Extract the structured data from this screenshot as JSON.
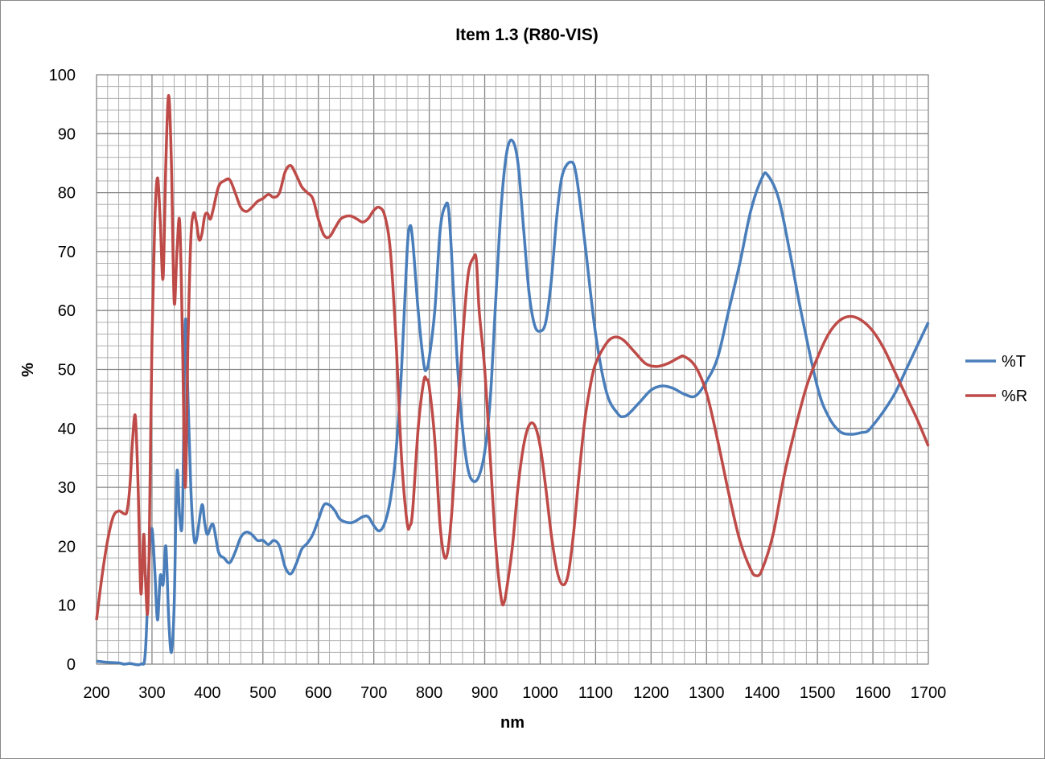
{
  "chart_data": {
    "type": "line",
    "title": "Item 1.3  (R80-VIS)",
    "xlabel": "nm",
    "ylabel": "%",
    "xlim": [
      200,
      1700
    ],
    "ylim": [
      0,
      100
    ],
    "xticks": [
      200,
      300,
      400,
      500,
      600,
      700,
      800,
      900,
      1000,
      1100,
      1200,
      1300,
      1400,
      1500,
      1600,
      1700
    ],
    "yticks": [
      0,
      10,
      20,
      30,
      40,
      50,
      60,
      70,
      80,
      90,
      100
    ],
    "grid": true,
    "minor_grid": {
      "x_step": 20,
      "y_step": 2
    },
    "legend_position": "right",
    "series": [
      {
        "name": "%T",
        "color": "#4a7ebb",
        "x": [
          200,
          220,
          240,
          250,
          260,
          280,
          288,
          295,
          300,
          305,
          310,
          315,
          320,
          325,
          330,
          335,
          340,
          345,
          350,
          355,
          360,
          365,
          370,
          375,
          380,
          390,
          395,
          400,
          410,
          420,
          430,
          440,
          450,
          460,
          470,
          480,
          490,
          500,
          510,
          520,
          530,
          540,
          550,
          560,
          570,
          580,
          590,
          600,
          610,
          620,
          630,
          640,
          660,
          680,
          690,
          700,
          710,
          720,
          730,
          740,
          750,
          760,
          765,
          770,
          780,
          790,
          795,
          800,
          810,
          820,
          830,
          835,
          840,
          850,
          860,
          870,
          880,
          890,
          900,
          910,
          920,
          930,
          940,
          950,
          960,
          970,
          980,
          990,
          1000,
          1010,
          1020,
          1030,
          1040,
          1055,
          1065,
          1080,
          1100,
          1120,
          1140,
          1150,
          1160,
          1180,
          1200,
          1220,
          1240,
          1260,
          1280,
          1300,
          1320,
          1340,
          1360,
          1380,
          1400,
          1410,
          1430,
          1450,
          1470,
          1500,
          1520,
          1540,
          1560,
          1580,
          1590,
          1600,
          1620,
          1640,
          1660,
          1680,
          1700
        ],
        "y": [
          0.5,
          0.3,
          0.2,
          0,
          0.1,
          0,
          2,
          18,
          23,
          16,
          7.5,
          15,
          13.5,
          20,
          8,
          2,
          10,
          32.5,
          25,
          25.5,
          58,
          45,
          30,
          22,
          21,
          27,
          24,
          22,
          23.7,
          19,
          18,
          17.2,
          19,
          21.5,
          22.4,
          22,
          21,
          21,
          20.3,
          21,
          20,
          16.5,
          15.3,
          17,
          19.5,
          20.5,
          22,
          24.5,
          27,
          27,
          26,
          24.5,
          24,
          25,
          25,
          23.5,
          22.6,
          24,
          28,
          36,
          50,
          70,
          74.3,
          72,
          60,
          51,
          50,
          52,
          60,
          74,
          78,
          77,
          70,
          52,
          40,
          33,
          31,
          32,
          36,
          45,
          62,
          78,
          87,
          88.8,
          85,
          74,
          63,
          57.5,
          56.5,
          58,
          65,
          76,
          83,
          85.2,
          83,
          72,
          56,
          46,
          42.5,
          42,
          42.5,
          44.5,
          46.5,
          47.2,
          46.8,
          45.8,
          45.5,
          48,
          52,
          60,
          68,
          77,
          82.5,
          83,
          79,
          70,
          60,
          47,
          42,
          39.5,
          39,
          39.3,
          39.5,
          40.5,
          43,
          46,
          50,
          54,
          58
        ]
      },
      {
        "name": "%R",
        "color": "#be4b48",
        "x": [
          200,
          210,
          220,
          230,
          240,
          250,
          255,
          260,
          265,
          270,
          275,
          280,
          285,
          288,
          292,
          295,
          300,
          305,
          310,
          315,
          320,
          325,
          330,
          335,
          340,
          345,
          350,
          355,
          360,
          365,
          370,
          375,
          380,
          385,
          390,
          395,
          400,
          405,
          410,
          420,
          430,
          440,
          450,
          460,
          470,
          480,
          490,
          500,
          510,
          520,
          530,
          540,
          550,
          560,
          570,
          580,
          590,
          600,
          610,
          620,
          630,
          640,
          650,
          660,
          670,
          680,
          690,
          700,
          710,
          720,
          730,
          740,
          750,
          760,
          765,
          770,
          780,
          790,
          795,
          800,
          810,
          820,
          830,
          840,
          850,
          860,
          870,
          880,
          885,
          890,
          900,
          910,
          920,
          930,
          935,
          940,
          950,
          960,
          970,
          980,
          990,
          1000,
          1010,
          1020,
          1030,
          1040,
          1050,
          1060,
          1070,
          1080,
          1090,
          1100,
          1120,
          1135,
          1150,
          1170,
          1190,
          1210,
          1230,
          1250,
          1260,
          1280,
          1300,
          1320,
          1340,
          1360,
          1380,
          1390,
          1400,
          1420,
          1440,
          1460,
          1480,
          1500,
          1520,
          1540,
          1560,
          1580,
          1600,
          1620,
          1640,
          1660,
          1680,
          1700
        ],
        "y": [
          7.5,
          15,
          21,
          25,
          26,
          25.5,
          26,
          30,
          38,
          42,
          30,
          12,
          22,
          15,
          8.5,
          20,
          55,
          75,
          82.5,
          75,
          65.5,
          85,
          96.5,
          85,
          61.5,
          70,
          75,
          55,
          30,
          55,
          72,
          76.5,
          75,
          72,
          73,
          76,
          76.5,
          75.5,
          77,
          81,
          82,
          82.2,
          80,
          77.5,
          76.8,
          77.5,
          78.5,
          79,
          79.7,
          79.2,
          80,
          83.5,
          84.6,
          83,
          81,
          80,
          79,
          75.5,
          72.8,
          72.5,
          74,
          75.5,
          76,
          76,
          75.5,
          75,
          75.6,
          77,
          77.5,
          76,
          70,
          55,
          35,
          24,
          23.5,
          26,
          40,
          48,
          48.3,
          47,
          38,
          23,
          18,
          25,
          40,
          55,
          66,
          69,
          68.5,
          60,
          50,
          35,
          20,
          11,
          10.5,
          13,
          20,
          30,
          37,
          40.5,
          40.5,
          37,
          30,
          22,
          16,
          13.5,
          15,
          22,
          32,
          41,
          47,
          51,
          54.5,
          55.5,
          55,
          53,
          51,
          50.5,
          51,
          52,
          52.2,
          50.5,
          46,
          38,
          29,
          21,
          16,
          15,
          16,
          22,
          32,
          40,
          47,
          52,
          56,
          58.3,
          59,
          58.3,
          56.5,
          53.5,
          49.5,
          45.5,
          41.5,
          37
        ]
      }
    ]
  }
}
